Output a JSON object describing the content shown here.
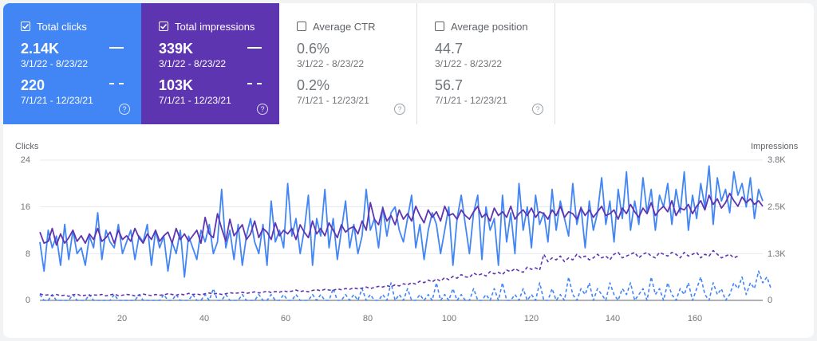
{
  "colors": {
    "clicks": "#4285f4",
    "impressions": "#5e35b1",
    "grid": "#e8eaed",
    "axis": "#5f6368"
  },
  "tiles": {
    "clicks": {
      "label": "Total clicks",
      "checked": true,
      "current_value": "2.14K",
      "current_range": "3/1/22 - 8/23/22",
      "previous_value": "220",
      "previous_range": "7/1/21 - 12/23/21"
    },
    "impressions": {
      "label": "Total impressions",
      "checked": true,
      "current_value": "339K",
      "current_range": "3/1/22 - 8/23/22",
      "previous_value": "103K",
      "previous_range": "7/1/21 - 12/23/21"
    },
    "ctr": {
      "label": "Average CTR",
      "checked": false,
      "current_value": "0.6%",
      "current_range": "3/1/22 - 8/23/22",
      "previous_value": "0.2%",
      "previous_range": "7/1/21 - 12/23/21"
    },
    "position": {
      "label": "Average position",
      "checked": false,
      "current_value": "44.7",
      "current_range": "3/1/22 - 8/23/22",
      "previous_value": "56.7",
      "previous_range": "7/1/21 - 12/23/21"
    }
  },
  "help_glyph": "?",
  "chart_data": {
    "type": "line",
    "y_left_label": "Clicks",
    "y_right_label": "Impressions",
    "y_left_ticks": [
      "0",
      "8",
      "16",
      "24"
    ],
    "y_right_ticks": [
      "0",
      "1.3K",
      "2.5K",
      "3.8K"
    ],
    "x_ticks": [
      "20",
      "40",
      "60",
      "80",
      "100",
      "120",
      "140",
      "160"
    ],
    "xlim": [
      1,
      176
    ],
    "ylim_left": [
      0,
      24
    ],
    "ylim_right": [
      0,
      3800
    ],
    "grid": true,
    "series": [
      {
        "name": "Total clicks",
        "axis": "left",
        "style": "solid",
        "color": "#4285f4",
        "values": [
          10,
          5,
          12,
          9,
          11,
          6,
          13,
          7,
          12,
          8,
          9,
          6,
          11,
          9,
          15,
          7,
          12,
          10,
          9,
          13,
          8,
          10,
          12,
          7,
          11,
          10,
          13,
          6,
          12,
          9,
          11,
          5,
          10,
          8,
          12,
          4,
          11,
          9,
          7,
          12,
          10,
          13,
          8,
          10,
          19,
          9,
          12,
          7,
          13,
          6,
          11,
          14,
          10,
          8,
          13,
          6,
          17,
          10,
          12,
          9,
          20,
          11,
          14,
          8,
          12,
          18,
          6,
          14,
          11,
          19,
          9,
          14,
          7,
          12,
          17,
          9,
          13,
          8,
          11,
          19,
          12,
          14,
          9,
          16,
          11,
          15,
          16,
          12,
          10,
          14,
          18,
          9,
          13,
          7,
          12,
          15,
          13,
          8,
          12,
          16,
          6,
          14,
          18,
          13,
          8,
          15,
          18,
          7,
          16,
          12,
          14,
          6,
          18,
          10,
          15,
          8,
          20,
          12,
          16,
          9,
          18,
          13,
          15,
          10,
          19,
          12,
          17,
          14,
          11,
          20,
          13,
          16,
          9,
          17,
          12,
          15,
          21,
          13,
          17,
          10,
          19,
          14,
          22,
          12,
          17,
          13,
          21,
          15,
          19,
          12,
          18,
          16,
          20,
          13,
          19,
          15,
          22,
          12,
          18,
          14,
          20,
          16,
          23,
          13,
          21,
          17,
          19,
          15,
          22,
          18,
          20,
          16,
          21,
          14,
          19,
          17
        ]
      },
      {
        "name": "Total impressions",
        "axis": "right",
        "style": "solid",
        "color": "#5e35b1",
        "values": [
          1850,
          1550,
          1600,
          1950,
          1500,
          1800,
          1550,
          1700,
          1900,
          1600,
          1750,
          1550,
          1800,
          1650,
          1950,
          1600,
          1700,
          1850,
          1550,
          1900,
          1650,
          1750,
          1600,
          1950,
          1700,
          1550,
          1800,
          1650,
          1900,
          1600,
          1750,
          1850,
          1550,
          1950,
          1650,
          1800,
          1600,
          1750,
          1900,
          1550,
          2250,
          1800,
          1700,
          2350,
          1950,
          1600,
          2200,
          1750,
          1900,
          2050,
          1650,
          1800,
          2150,
          1700,
          1950,
          1850,
          1650,
          2100,
          1750,
          1900,
          1800,
          1950,
          1650,
          2050,
          1850,
          1700,
          2150,
          1800,
          1950,
          1750,
          2100,
          1900,
          1700,
          2050,
          1850,
          1950,
          2000,
          1800,
          2150,
          1900,
          2650,
          2200,
          2050,
          2500,
          2150,
          2300,
          2050,
          2450,
          2200,
          2350,
          2150,
          2550,
          2300,
          2100,
          2450,
          2250,
          2400,
          2150,
          2550,
          2300,
          2350,
          2200,
          2450,
          2300,
          2200,
          2400,
          2550,
          2250,
          2350,
          2150,
          2500,
          2300,
          2400,
          2250,
          2550,
          2200,
          2350,
          2450,
          2300,
          2500,
          2250,
          2400,
          2350,
          2200,
          2450,
          2300,
          2550,
          2250,
          2400,
          2350,
          2200,
          2500,
          2300,
          2450,
          2250,
          2400,
          2550,
          2300,
          2350,
          2450,
          2200,
          2500,
          2350,
          2600,
          2400,
          2250,
          2500,
          2350,
          2650,
          2300,
          2450,
          2550,
          2400,
          2700,
          2300,
          2500,
          2450,
          2600,
          2350,
          2550,
          2700,
          2450,
          2850,
          2600,
          2750,
          2500,
          2650,
          2900,
          2700,
          2550,
          2800,
          2650,
          2750,
          2600,
          2700,
          2550
        ]
      },
      {
        "name": "Total clicks (previous)",
        "axis": "left",
        "style": "dashed",
        "color": "#4285f4",
        "values": [
          1,
          0,
          0,
          1,
          0,
          0,
          0,
          0,
          1,
          0,
          0,
          0,
          1,
          0,
          0,
          0,
          0,
          0,
          1,
          0,
          0,
          0,
          0,
          0,
          1,
          0,
          0,
          0,
          0,
          0,
          1,
          0,
          0,
          1,
          0,
          0,
          0,
          1,
          0,
          0,
          1,
          0,
          2,
          0,
          0,
          1,
          0,
          0,
          0,
          1,
          0,
          0,
          0,
          1,
          0,
          0,
          1,
          0,
          0,
          1,
          0,
          0,
          1,
          0,
          0,
          0,
          1,
          0,
          1,
          0,
          0,
          2,
          0,
          0,
          1,
          0,
          1,
          0,
          2,
          0,
          1,
          0,
          0,
          1,
          0,
          3,
          0,
          1,
          0,
          2,
          0,
          0,
          1,
          0,
          1,
          0,
          3,
          0,
          1,
          0,
          2,
          0,
          1,
          0,
          0,
          2,
          0,
          0,
          1,
          0,
          2,
          0,
          3,
          0,
          0,
          1,
          0,
          2,
          0,
          1,
          0,
          3,
          0,
          0,
          2,
          0,
          1,
          0,
          4,
          1,
          0,
          2,
          1,
          3,
          0,
          2,
          1,
          0,
          3,
          1,
          0,
          2,
          1,
          3,
          0,
          1,
          2,
          0,
          4,
          1,
          2,
          0,
          3,
          1,
          0,
          2,
          1,
          3,
          0,
          2,
          4,
          1,
          0,
          3,
          1,
          2,
          0,
          1,
          3,
          2,
          4,
          1,
          3,
          2,
          5,
          3,
          4,
          2
        ]
      },
      {
        "name": "Total impressions (previous)",
        "axis": "right",
        "style": "dashed",
        "color": "#5e35b1",
        "values": [
          180,
          140,
          150,
          120,
          160,
          130,
          140,
          110,
          150,
          170,
          120,
          140,
          130,
          150,
          140,
          160,
          120,
          150,
          170,
          130,
          140,
          160,
          150,
          120,
          140,
          170,
          150,
          130,
          160,
          140,
          150,
          180,
          160,
          140,
          170,
          150,
          190,
          160,
          170,
          150,
          180,
          200,
          170,
          190,
          160,
          180,
          210,
          190,
          200,
          220,
          190,
          210,
          230,
          200,
          220,
          250,
          210,
          240,
          220,
          260,
          230,
          250,
          280,
          240,
          260,
          230,
          270,
          290,
          260,
          300,
          280,
          270,
          310,
          290,
          320,
          300,
          340,
          310,
          330,
          360,
          320,
          350,
          380,
          360,
          400,
          370,
          420,
          390,
          450,
          420,
          480,
          440,
          520,
          480,
          550,
          500,
          580,
          520,
          620,
          560,
          650,
          600,
          700,
          640,
          620,
          740,
          680,
          720,
          660,
          780,
          720,
          760,
          700,
          820,
          780,
          860,
          800,
          760,
          900,
          840,
          880,
          820,
          1250,
          1050,
          1150,
          1100,
          1200,
          1050,
          1150,
          1100,
          1250,
          1150,
          1200,
          1100,
          1150,
          1250,
          1150,
          1200,
          1100,
          1250,
          1300,
          1150,
          1200,
          1250,
          1300,
          1150,
          1250,
          1300,
          1200,
          1150,
          1300,
          1250,
          1200,
          1300,
          1250,
          1150,
          1300,
          1200,
          1250,
          1300,
          1150,
          1250,
          1200,
          1350,
          1250,
          1150,
          1200,
          1250,
          1150,
          1200
        ]
      }
    ]
  }
}
